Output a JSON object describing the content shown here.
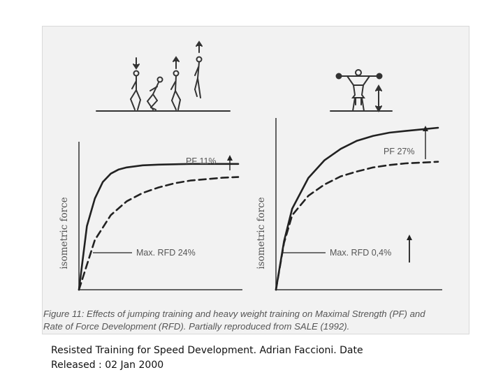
{
  "caption": {
    "line1": "Figure 11: Effects of jumping training and heavy weight training on Maximal Strength (PF) and",
    "line2": "Rate of Force Development (RFD). Partially reproduced from SALE (1992)."
  },
  "footer": {
    "line1": "Resisted Training for Speed Development. Adrian Faccioni. Date",
    "line2": "Released : 02 Jan 2000"
  },
  "colors": {
    "curve": "#222222",
    "axis": "#333333",
    "text": "#555555"
  },
  "chart_data": [
    {
      "type": "line",
      "ylabel": "isometric force",
      "xlabel": "",
      "xlim": [
        0,
        1
      ],
      "ylim": [
        0,
        1
      ],
      "series": [
        {
          "style": "solid",
          "x": [
            0,
            0.05,
            0.1,
            0.15,
            0.2,
            0.25,
            0.3,
            0.4,
            0.5,
            0.7,
            1.0
          ],
          "y": [
            0,
            0.46,
            0.66,
            0.78,
            0.84,
            0.87,
            0.885,
            0.9,
            0.905,
            0.91,
            0.91
          ]
        },
        {
          "style": "dashed",
          "x": [
            0,
            0.1,
            0.2,
            0.3,
            0.4,
            0.5,
            0.6,
            0.7,
            0.8,
            0.9,
            1.0
          ],
          "y": [
            0,
            0.36,
            0.54,
            0.64,
            0.7,
            0.74,
            0.77,
            0.79,
            0.8,
            0.81,
            0.815
          ]
        }
      ],
      "annotations": [
        {
          "text": "PF 11%",
          "arrow": "up"
        },
        {
          "text": "Max. RFD 24%"
        }
      ],
      "icon": "jumping-figures-icon"
    },
    {
      "type": "line",
      "ylabel": "isometric force",
      "xlabel": "",
      "xlim": [
        0,
        1
      ],
      "ylim": [
        0,
        1
      ],
      "series": [
        {
          "style": "solid",
          "x": [
            0,
            0.05,
            0.1,
            0.2,
            0.3,
            0.4,
            0.5,
            0.6,
            0.7,
            0.8,
            0.9,
            1.0
          ],
          "y": [
            0,
            0.3,
            0.5,
            0.69,
            0.8,
            0.87,
            0.92,
            0.95,
            0.97,
            0.98,
            0.99,
            1.0
          ]
        },
        {
          "style": "dashed",
          "x": [
            0,
            0.05,
            0.1,
            0.2,
            0.3,
            0.4,
            0.5,
            0.6,
            0.7,
            0.8,
            0.9,
            1.0
          ],
          "y": [
            0,
            0.29,
            0.46,
            0.58,
            0.65,
            0.7,
            0.73,
            0.755,
            0.77,
            0.78,
            0.785,
            0.79
          ]
        }
      ],
      "annotations": [
        {
          "text": "PF 27%",
          "arrow": "up"
        },
        {
          "text": "Max. RFD 0,4%",
          "arrow": "up"
        }
      ],
      "icon": "weightlifter-icon"
    }
  ]
}
